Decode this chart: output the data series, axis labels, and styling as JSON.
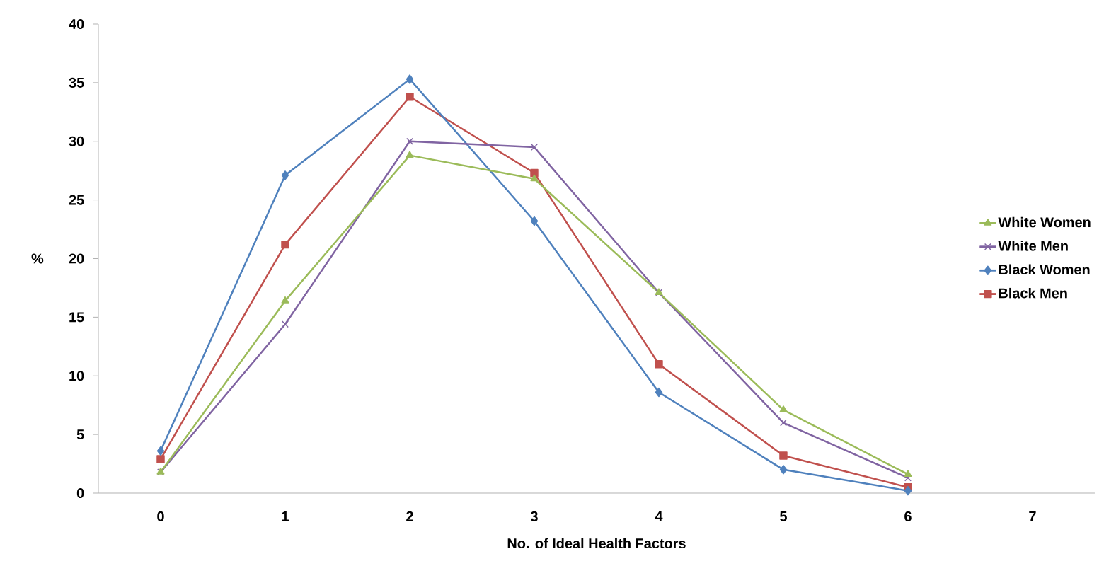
{
  "chart_data": {
    "type": "line",
    "xlabel": "No. of Ideal Health Factors",
    "ylabel": "%",
    "categories": [
      "0",
      "1",
      "2",
      "3",
      "4",
      "5",
      "6",
      "7"
    ],
    "series": [
      {
        "name": "White Women",
        "color": "#9bbb59",
        "marker": "triangle",
        "values": [
          1.8,
          16.4,
          28.8,
          26.8,
          17.1,
          7.1,
          1.6,
          null
        ]
      },
      {
        "name": "White Men",
        "color": "#8064a2",
        "marker": "cross",
        "values": [
          1.8,
          14.4,
          30.0,
          29.5,
          17.1,
          6.0,
          1.3,
          null
        ]
      },
      {
        "name": "Black Women",
        "color": "#4f81bd",
        "marker": "diamond",
        "values": [
          3.6,
          27.1,
          35.3,
          23.2,
          8.6,
          2.0,
          0.2,
          null
        ]
      },
      {
        "name": "Black Men",
        "color": "#c0504d",
        "marker": "square",
        "values": [
          2.9,
          21.2,
          33.8,
          27.3,
          11.0,
          3.2,
          0.5,
          null
        ]
      }
    ],
    "ylim": [
      0,
      40
    ],
    "yticks": [
      0,
      5,
      10,
      15,
      20,
      25,
      30,
      35,
      40
    ],
    "grid": false,
    "legend": "right",
    "line_style": "solid"
  }
}
